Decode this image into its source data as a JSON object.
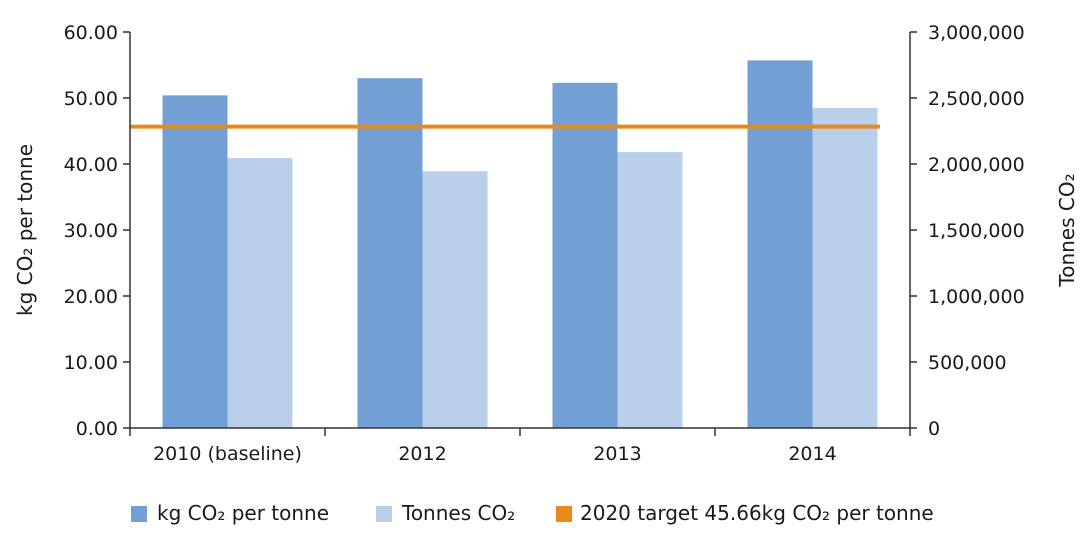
{
  "chart_data": {
    "type": "bar",
    "categories": [
      "2010 (baseline)",
      "2012",
      "2013",
      "2014"
    ],
    "series": [
      {
        "name": "kg CO₂ per tonne",
        "axis": "left",
        "color": "#729fd4",
        "values": [
          50.4,
          53.0,
          52.3,
          55.7
        ]
      },
      {
        "name": "Tonnes CO₂",
        "axis": "right",
        "color": "#bad0ea",
        "values": [
          2045000,
          1945000,
          2090000,
          2425000
        ]
      }
    ],
    "reference_line": {
      "name": "2020 target 45.66kg CO₂ per tonne",
      "axis": "left",
      "value": 45.66,
      "color": "#e8891c"
    },
    "ylabel": "kg CO₂ per tonne",
    "ylabel_right": "Tonnes CO₂",
    "ylim": [
      0,
      60
    ],
    "ylim_right": [
      0,
      3000000
    ],
    "yticks": [
      "0.00",
      "10.00",
      "20.00",
      "30.00",
      "40.00",
      "50.00",
      "60.00"
    ],
    "yticks_right": [
      "0",
      "500,000",
      "1,000,000",
      "1,500,000",
      "2,000,000",
      "2,500,000",
      "3,000,000"
    ],
    "grid": false,
    "legend_position": "bottom"
  }
}
